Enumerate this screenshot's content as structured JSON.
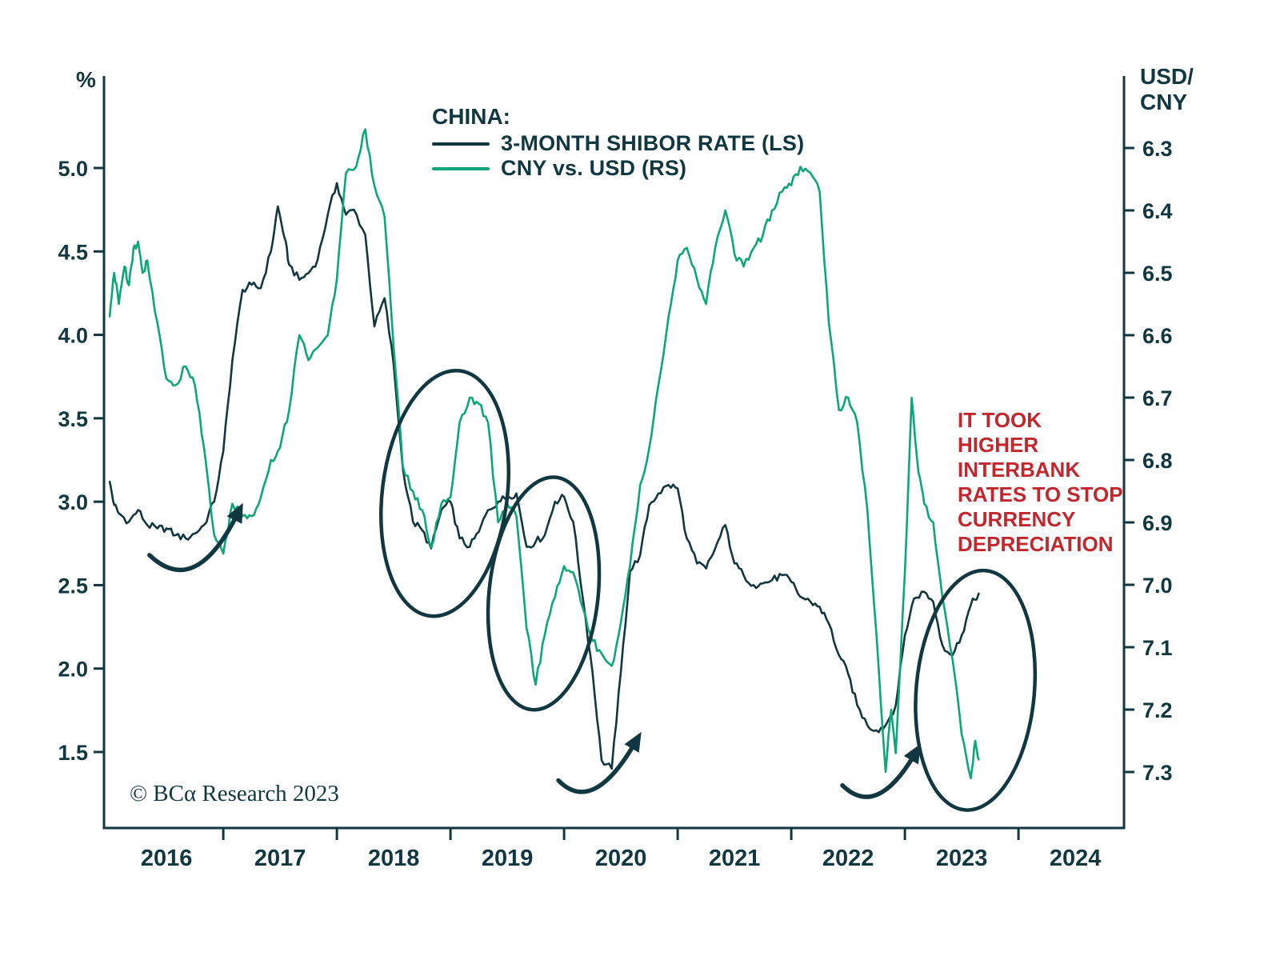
{
  "colors": {
    "dark": "#113840",
    "green": "#0ba778",
    "red": "#c1272d",
    "background": "#ffffff"
  },
  "header": {
    "left_unit": "%",
    "right_unit": "USD/\nCNY"
  },
  "legend": {
    "title": "CHINA:",
    "series": [
      {
        "label": "3-MONTH SHIBOR RATE (LS)",
        "color_key": "dark"
      },
      {
        "label": "CNY vs. USD (RS)",
        "color_key": "green"
      }
    ]
  },
  "annotation": {
    "text": "IT TOOK\nHIGHER\nINTERBANK\nRATES TO STOP\nCURRENCY\nDEPRECIATION"
  },
  "copyright": "© BCα Research 2023",
  "chart_data": {
    "type": "line",
    "title": "CHINA:",
    "x_axis": {
      "labels": [
        "2016",
        "2017",
        "2018",
        "2019",
        "2020",
        "2021",
        "2022",
        "2023",
        "2024"
      ],
      "tick_years": [
        2017,
        2018,
        2019,
        2020,
        2021,
        2022,
        2023,
        2024
      ],
      "domain": [
        2015.95,
        2024.95
      ]
    },
    "left_axis": {
      "unit": "%",
      "ticks": [
        5.0,
        4.5,
        4.0,
        3.5,
        3.0,
        2.5,
        2.0,
        1.5
      ],
      "tick_labels": [
        "5.0",
        "4.5",
        "4.0",
        "3.5",
        "3.0",
        "2.5",
        "2.0",
        "1.5"
      ]
    },
    "right_axis": {
      "unit": "USD/CNY",
      "inverted": true,
      "ticks": [
        6.3,
        6.4,
        6.5,
        6.6,
        6.7,
        6.8,
        6.9,
        7.0,
        7.1,
        7.2,
        7.3
      ],
      "tick_labels": [
        "6.3",
        "6.4",
        "6.5",
        "6.6",
        "6.7",
        "6.8",
        "6.9",
        "7.0",
        "7.1",
        "7.2",
        "7.3"
      ]
    },
    "series": [
      {
        "name": "3-MONTH SHIBOR RATE (LS)",
        "axis": "left",
        "color": "dark",
        "points": [
          [
            2016.0,
            3.12
          ],
          [
            2016.04,
            2.98
          ],
          [
            2016.08,
            2.93
          ],
          [
            2016.17,
            2.88
          ],
          [
            2016.25,
            2.95
          ],
          [
            2016.33,
            2.86
          ],
          [
            2016.42,
            2.84
          ],
          [
            2016.5,
            2.84
          ],
          [
            2016.58,
            2.8
          ],
          [
            2016.67,
            2.78
          ],
          [
            2016.75,
            2.81
          ],
          [
            2016.83,
            2.86
          ],
          [
            2016.92,
            3.0
          ],
          [
            2017.0,
            3.3
          ],
          [
            2017.08,
            3.85
          ],
          [
            2017.17,
            4.27
          ],
          [
            2017.25,
            4.3
          ],
          [
            2017.33,
            4.28
          ],
          [
            2017.42,
            4.5
          ],
          [
            2017.48,
            4.77
          ],
          [
            2017.54,
            4.58
          ],
          [
            2017.58,
            4.42
          ],
          [
            2017.67,
            4.33
          ],
          [
            2017.75,
            4.37
          ],
          [
            2017.83,
            4.45
          ],
          [
            2017.92,
            4.72
          ],
          [
            2018.0,
            4.91
          ],
          [
            2018.08,
            4.72
          ],
          [
            2018.15,
            4.75
          ],
          [
            2018.25,
            4.6
          ],
          [
            2018.33,
            4.05
          ],
          [
            2018.42,
            4.22
          ],
          [
            2018.5,
            3.82
          ],
          [
            2018.58,
            3.2
          ],
          [
            2018.67,
            2.88
          ],
          [
            2018.75,
            2.83
          ],
          [
            2018.83,
            2.72
          ],
          [
            2018.92,
            2.95
          ],
          [
            2019.0,
            3.0
          ],
          [
            2019.08,
            2.78
          ],
          [
            2019.17,
            2.73
          ],
          [
            2019.25,
            2.82
          ],
          [
            2019.33,
            2.95
          ],
          [
            2019.42,
            3.0
          ],
          [
            2019.5,
            3.03
          ],
          [
            2019.58,
            3.05
          ],
          [
            2019.67,
            2.73
          ],
          [
            2019.75,
            2.76
          ],
          [
            2019.83,
            2.8
          ],
          [
            2019.92,
            3.0
          ],
          [
            2020.0,
            3.03
          ],
          [
            2020.08,
            2.88
          ],
          [
            2020.17,
            2.4
          ],
          [
            2020.25,
            1.98
          ],
          [
            2020.33,
            1.45
          ],
          [
            2020.42,
            1.4
          ],
          [
            2020.5,
            1.98
          ],
          [
            2020.58,
            2.58
          ],
          [
            2020.67,
            2.68
          ],
          [
            2020.75,
            2.98
          ],
          [
            2020.83,
            3.05
          ],
          [
            2020.92,
            3.1
          ],
          [
            2021.0,
            3.08
          ],
          [
            2021.08,
            2.78
          ],
          [
            2021.17,
            2.63
          ],
          [
            2021.25,
            2.6
          ],
          [
            2021.33,
            2.72
          ],
          [
            2021.42,
            2.86
          ],
          [
            2021.5,
            2.63
          ],
          [
            2021.58,
            2.56
          ],
          [
            2021.67,
            2.5
          ],
          [
            2021.75,
            2.51
          ],
          [
            2021.83,
            2.53
          ],
          [
            2021.92,
            2.56
          ],
          [
            2022.0,
            2.52
          ],
          [
            2022.08,
            2.43
          ],
          [
            2022.17,
            2.4
          ],
          [
            2022.25,
            2.37
          ],
          [
            2022.33,
            2.27
          ],
          [
            2022.42,
            2.08
          ],
          [
            2022.5,
            1.97
          ],
          [
            2022.58,
            1.78
          ],
          [
            2022.67,
            1.66
          ],
          [
            2022.75,
            1.63
          ],
          [
            2022.83,
            1.66
          ],
          [
            2022.92,
            1.78
          ],
          [
            2023.0,
            2.2
          ],
          [
            2023.08,
            2.42
          ],
          [
            2023.17,
            2.46
          ],
          [
            2023.25,
            2.4
          ],
          [
            2023.33,
            2.14
          ],
          [
            2023.42,
            2.08
          ],
          [
            2023.5,
            2.2
          ],
          [
            2023.58,
            2.38
          ],
          [
            2023.65,
            2.45
          ]
        ]
      },
      {
        "name": "CNY vs. USD (RS)",
        "axis": "right",
        "color": "green",
        "points": [
          [
            2016.0,
            6.57
          ],
          [
            2016.04,
            6.5
          ],
          [
            2016.08,
            6.55
          ],
          [
            2016.13,
            6.49
          ],
          [
            2016.17,
            6.52
          ],
          [
            2016.21,
            6.46
          ],
          [
            2016.25,
            6.45
          ],
          [
            2016.29,
            6.5
          ],
          [
            2016.33,
            6.48
          ],
          [
            2016.42,
            6.58
          ],
          [
            2016.5,
            6.67
          ],
          [
            2016.58,
            6.68
          ],
          [
            2016.67,
            6.65
          ],
          [
            2016.75,
            6.68
          ],
          [
            2016.83,
            6.78
          ],
          [
            2016.92,
            6.92
          ],
          [
            2017.0,
            6.95
          ],
          [
            2017.08,
            6.87
          ],
          [
            2017.17,
            6.89
          ],
          [
            2017.25,
            6.89
          ],
          [
            2017.33,
            6.86
          ],
          [
            2017.42,
            6.8
          ],
          [
            2017.5,
            6.78
          ],
          [
            2017.58,
            6.72
          ],
          [
            2017.67,
            6.6
          ],
          [
            2017.75,
            6.64
          ],
          [
            2017.83,
            6.62
          ],
          [
            2017.92,
            6.6
          ],
          [
            2018.0,
            6.51
          ],
          [
            2018.08,
            6.34
          ],
          [
            2018.17,
            6.33
          ],
          [
            2018.25,
            6.27
          ],
          [
            2018.33,
            6.36
          ],
          [
            2018.42,
            6.41
          ],
          [
            2018.5,
            6.62
          ],
          [
            2018.58,
            6.81
          ],
          [
            2018.67,
            6.85
          ],
          [
            2018.75,
            6.88
          ],
          [
            2018.83,
            6.94
          ],
          [
            2018.92,
            6.87
          ],
          [
            2019.0,
            6.86
          ],
          [
            2019.08,
            6.74
          ],
          [
            2019.17,
            6.7
          ],
          [
            2019.25,
            6.71
          ],
          [
            2019.33,
            6.74
          ],
          [
            2019.42,
            6.9
          ],
          [
            2019.5,
            6.87
          ],
          [
            2019.58,
            6.89
          ],
          [
            2019.67,
            7.07
          ],
          [
            2019.75,
            7.16
          ],
          [
            2019.83,
            7.08
          ],
          [
            2019.92,
            7.02
          ],
          [
            2020.0,
            6.97
          ],
          [
            2020.08,
            6.98
          ],
          [
            2020.17,
            7.04
          ],
          [
            2020.25,
            7.09
          ],
          [
            2020.33,
            7.11
          ],
          [
            2020.42,
            7.13
          ],
          [
            2020.5,
            7.06
          ],
          [
            2020.58,
            6.97
          ],
          [
            2020.67,
            6.84
          ],
          [
            2020.75,
            6.78
          ],
          [
            2020.83,
            6.68
          ],
          [
            2020.92,
            6.57
          ],
          [
            2021.0,
            6.48
          ],
          [
            2021.08,
            6.46
          ],
          [
            2021.17,
            6.51
          ],
          [
            2021.25,
            6.55
          ],
          [
            2021.33,
            6.46
          ],
          [
            2021.42,
            6.4
          ],
          [
            2021.5,
            6.47
          ],
          [
            2021.58,
            6.49
          ],
          [
            2021.67,
            6.46
          ],
          [
            2021.75,
            6.44
          ],
          [
            2021.83,
            6.4
          ],
          [
            2021.92,
            6.37
          ],
          [
            2022.0,
            6.36
          ],
          [
            2022.08,
            6.33
          ],
          [
            2022.17,
            6.34
          ],
          [
            2022.25,
            6.37
          ],
          [
            2022.33,
            6.58
          ],
          [
            2022.42,
            6.72
          ],
          [
            2022.5,
            6.7
          ],
          [
            2022.58,
            6.74
          ],
          [
            2022.67,
            6.88
          ],
          [
            2022.75,
            7.08
          ],
          [
            2022.83,
            7.3
          ],
          [
            2022.88,
            7.2
          ],
          [
            2022.92,
            7.27
          ],
          [
            2023.0,
            6.98
          ],
          [
            2023.06,
            6.7
          ],
          [
            2023.12,
            6.82
          ],
          [
            2023.17,
            6.87
          ],
          [
            2023.25,
            6.9
          ],
          [
            2023.33,
            7.02
          ],
          [
            2023.42,
            7.12
          ],
          [
            2023.5,
            7.24
          ],
          [
            2023.58,
            7.31
          ],
          [
            2023.62,
            7.25
          ],
          [
            2023.65,
            7.28
          ]
        ]
      }
    ],
    "ellipses": [
      {
        "cx": 2018.95,
        "cy": 3.05,
        "rx": 0.55,
        "ry": 0.74,
        "rot": 7
      },
      {
        "cx": 2019.82,
        "cy": 2.45,
        "rx": 0.48,
        "ry": 0.7,
        "rot": 6
      },
      {
        "cx": 2023.62,
        "cy": 1.87,
        "rx": 0.52,
        "ry": 0.72,
        "rot": 5
      }
    ],
    "arrows": [
      {
        "from": [
          2016.35,
          2.68
        ],
        "ctrl": [
          2016.75,
          2.42
        ],
        "to": [
          2017.12,
          2.92
        ]
      },
      {
        "from": [
          2019.95,
          1.33
        ],
        "ctrl": [
          2020.25,
          1.12
        ],
        "to": [
          2020.62,
          1.55
        ]
      },
      {
        "from": [
          2022.45,
          1.3
        ],
        "ctrl": [
          2022.75,
          1.1
        ],
        "to": [
          2023.08,
          1.48
        ]
      }
    ]
  }
}
